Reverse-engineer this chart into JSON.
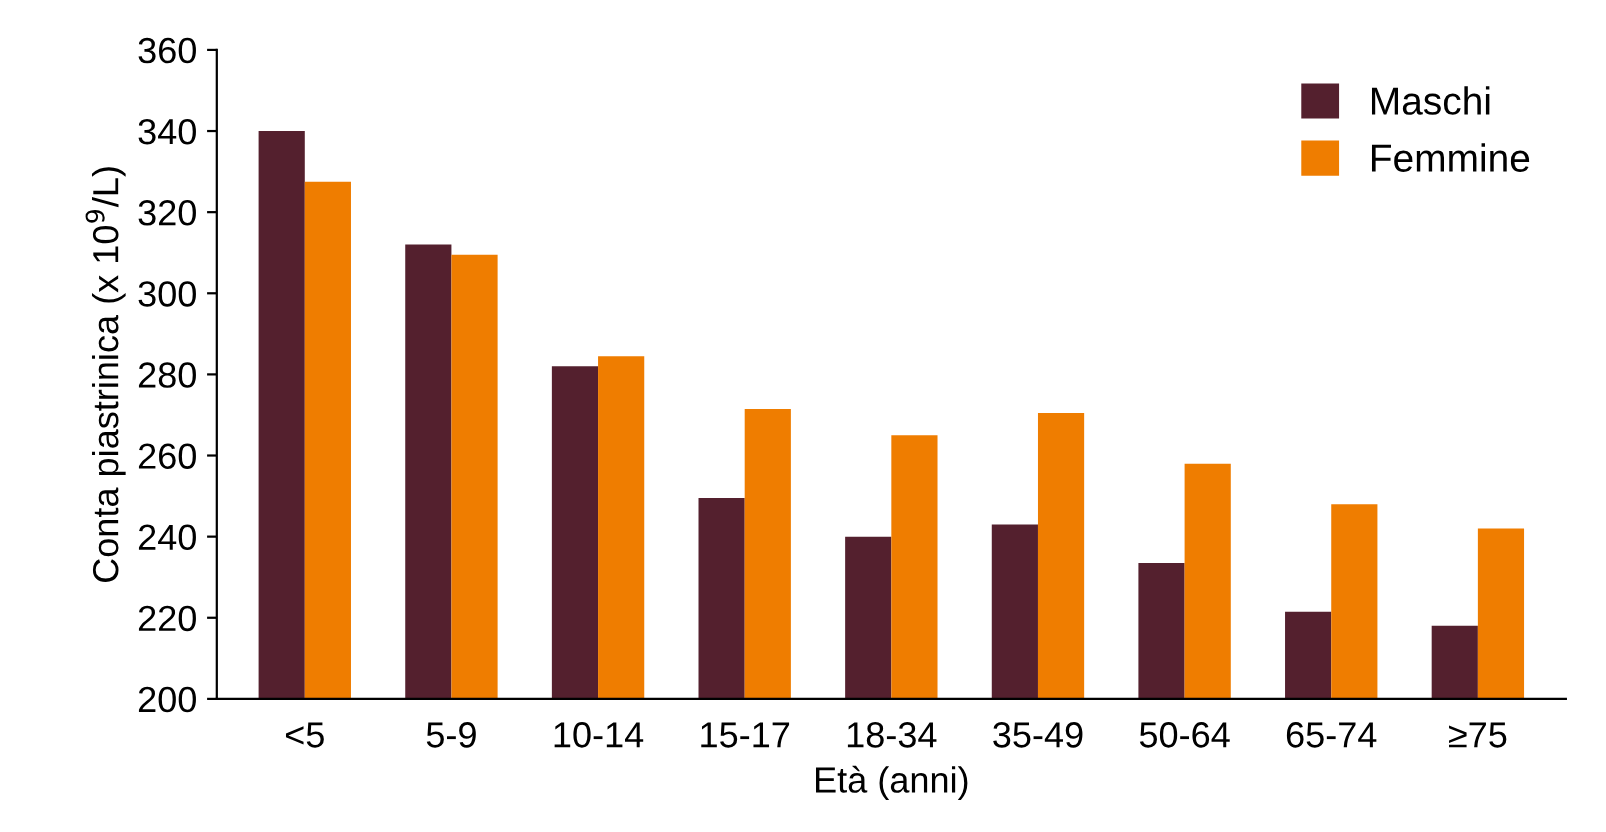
{
  "chart_data": {
    "type": "bar",
    "xlabel": "Età (anni)",
    "ylabel": "Conta piastrinica (x 10$^{9}$/L)",
    "categories": [
      "<5",
      "5-9",
      "10-14",
      "15-17",
      "18-34",
      "35-49",
      "50-64",
      "65-74",
      "≥75"
    ],
    "series": [
      {
        "name": "Maschi",
        "color": "#54202e",
        "values": [
          340,
          312,
          282,
          249.5,
          240,
          243,
          233.5,
          221.5,
          218
        ]
      },
      {
        "name": "Femmine",
        "color": "#ef7d00",
        "values": [
          327.5,
          309.5,
          284.5,
          271.5,
          265,
          270.5,
          258,
          248,
          242
        ]
      }
    ],
    "ylim": [
      200,
      360
    ],
    "yticks": [
      200,
      220,
      240,
      260,
      280,
      300,
      320,
      340,
      360
    ],
    "grid": false,
    "legend": "top right"
  }
}
